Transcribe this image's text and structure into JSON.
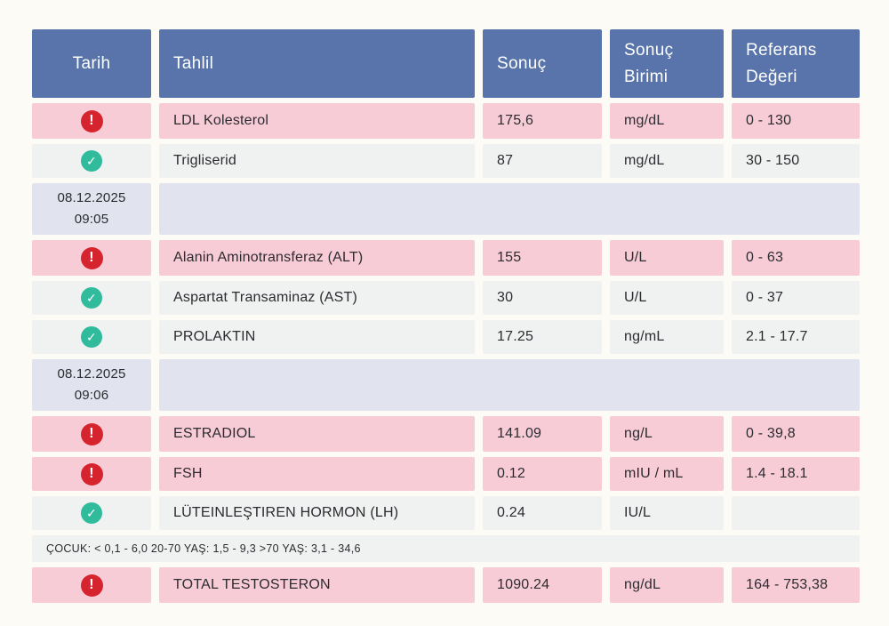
{
  "colors": {
    "page_bg": "#fdfbf6",
    "header_bg": "#5874ab",
    "abnormal_row_bg": "#f8ccd7",
    "normal_row_bg": "#f0f1f1",
    "date_row_bg": "#e1e4ef",
    "alert_icon": "#d6242f",
    "check_icon": "#2fbb9c",
    "text": "#2b2b30",
    "header_text": "#ffffff"
  },
  "icons": {
    "alert": "!",
    "check": "✓"
  },
  "table": {
    "columns": {
      "tarih": "Tarih",
      "tahlil": "Tahlil",
      "sonuc": "Sonuç",
      "sonuc_birimi": "Sonuç Birimi",
      "referans": "Referans Değeri"
    },
    "rows": [
      {
        "type": "result",
        "status": "high",
        "name": "LDL Kolesterol",
        "result": "175,6",
        "unit": "mg/dL",
        "reference": "0 - 130"
      },
      {
        "type": "result",
        "status": "normal",
        "name": "Trigliserid",
        "result": "87",
        "unit": "mg/dL",
        "reference": "30 - 150"
      },
      {
        "type": "date",
        "date": "08.12.2025",
        "time": "09:05"
      },
      {
        "type": "result",
        "status": "high",
        "name": "Alanin Aminotransferaz (ALT)",
        "result": "155",
        "unit": "U/L",
        "reference": "0 - 63"
      },
      {
        "type": "result",
        "status": "normal",
        "name": "Aspartat Transaminaz (AST)",
        "result": "30",
        "unit": "U/L",
        "reference": "0 - 37"
      },
      {
        "type": "result",
        "status": "normal",
        "name": "PROLAKTIN",
        "result": "17.25",
        "unit": "ng/mL",
        "reference": "2.1 - 17.7"
      },
      {
        "type": "date",
        "date": "08.12.2025",
        "time": "09:06"
      },
      {
        "type": "result",
        "status": "high",
        "name": "ESTRADIOL",
        "result": "141.09",
        "unit": "ng/L",
        "reference": "0 - 39,8"
      },
      {
        "type": "result",
        "status": "high",
        "name": "FSH",
        "result": "0.12",
        "unit": "mIU / mL",
        "reference": "1.4 - 18.1"
      },
      {
        "type": "result",
        "status": "normal",
        "name": "LÜTEINLEŞTIREN HORMON (LH)",
        "result": "0.24",
        "unit": "IU/L",
        "reference": ""
      },
      {
        "type": "note",
        "text": "ÇOCUK: < 0,1 - 6,0 20-70 YAŞ: 1,5 - 9,3 >70 YAŞ: 3,1 - 34,6"
      },
      {
        "type": "result",
        "status": "high",
        "name": "TOTAL TESTOSTERON",
        "result": "1090.24",
        "unit": "ng/dL",
        "reference": "164 - 753,38"
      }
    ]
  }
}
